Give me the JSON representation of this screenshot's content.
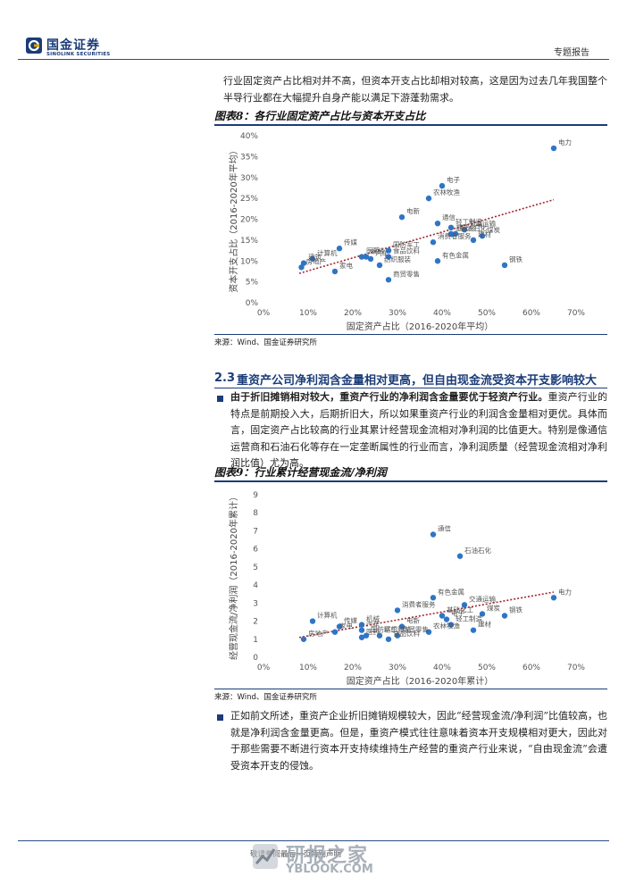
{
  "header": {
    "logo_cn": "国金证券",
    "logo_en": "SINOLINK SECURITIES",
    "report_type": "专题报告"
  },
  "intro_paragraph": "行业固定资产占比相对并不高，但资本开支占比却相对较高，这是因为过去几年我国整个半导行业都在大幅提升自身产能以满足下游蓬勃需求。",
  "figure8": {
    "title": "图表8：各行业固定资产占比与资本开支占比",
    "source": "来源：Wind、国金证券研究所"
  },
  "section": {
    "number": "2.3",
    "title": "重资产公司净利润含金量相对更高，但自由现金流受资本开支影响较大"
  },
  "bullet1": {
    "bold": "由于折旧摊销相对较大，重资产行业的净利润含金量要优于轻资产行业。",
    "body": "重资产行业的特点是前期投入大，后期折旧大，所以如果重资产行业的利润含金量相对更优。具体而言，固定资产占比较高的行业其累计经营现金流相对净利润的比值更大。特别是像通信运营商和石油石化等存在一定垄断属性的行业而言，净利润质量（经营现金流相对净利润比值）尤为高。"
  },
  "figure9": {
    "title": "图表9：行业累计经营现金流/净利润",
    "source": "来源：Wind、国金证券研究所"
  },
  "bullet2": {
    "body": "正如前文所述，重资产企业折旧摊销规模较大，因此“经营现金流/净利润”比值较高，也就是净利润含金量更高。但是，重资产模式往往意味着资本开支规模相对更大，因此对于那些需要不断进行资本开支持续维持生产经营的重资产行业来说，“自由现金流”会遭受资本开支的侵蚀。"
  },
  "footer": {
    "text": "敬请参阅最后一页特别声明",
    "watermark": "研报之家",
    "watermark_url": "YBLOOK.COM"
  },
  "chart_data": [
    {
      "type": "scatter",
      "xlabel": "固定资产占比（2016-2020年平均）",
      "ylabel": "资本开支占比（2016-2020年平均）",
      "xlim": [
        0,
        0.7
      ],
      "ylim": [
        0,
        0.4
      ],
      "x_ticks": [
        "0%",
        "10%",
        "20%",
        "30%",
        "40%",
        "50%",
        "60%",
        "70%"
      ],
      "y_ticks": [
        "0%",
        "5%",
        "10%",
        "15%",
        "20%",
        "25%",
        "30%",
        "35%",
        "40%"
      ],
      "trendline": true,
      "color": "#2e75c6",
      "trend_color": "#a0262b",
      "points": [
        {
          "label": "电力",
          "x": 0.65,
          "y": 0.37
        },
        {
          "label": "电子",
          "x": 0.4,
          "y": 0.28
        },
        {
          "label": "农林牧渔",
          "x": 0.37,
          "y": 0.25
        },
        {
          "label": "电新",
          "x": 0.31,
          "y": 0.205
        },
        {
          "label": "通信",
          "x": 0.39,
          "y": 0.19
        },
        {
          "label": "轻工制造",
          "x": 0.42,
          "y": 0.18
        },
        {
          "label": "交通运输",
          "x": 0.45,
          "y": 0.175
        },
        {
          "label": "基础化工",
          "x": 0.42,
          "y": 0.165
        },
        {
          "label": "石油石化",
          "x": 0.43,
          "y": 0.165
        },
        {
          "label": "煤炭",
          "x": 0.49,
          "y": 0.16
        },
        {
          "label": "建材",
          "x": 0.47,
          "y": 0.15
        },
        {
          "label": "消费者服务",
          "x": 0.38,
          "y": 0.145
        },
        {
          "label": "有色金属",
          "x": 0.39,
          "y": 0.1
        },
        {
          "label": "钢铁",
          "x": 0.54,
          "y": 0.09
        },
        {
          "label": "传媒",
          "x": 0.17,
          "y": 0.13
        },
        {
          "label": "医药",
          "x": 0.22,
          "y": 0.11
        },
        {
          "label": "国防军工",
          "x": 0.28,
          "y": 0.125
        },
        {
          "label": "机械",
          "x": 0.23,
          "y": 0.11
        },
        {
          "label": "食品饮料",
          "x": 0.28,
          "y": 0.11
        },
        {
          "label": "汽车",
          "x": 0.24,
          "y": 0.105
        },
        {
          "label": "纺织服装",
          "x": 0.26,
          "y": 0.09
        },
        {
          "label": "计算机",
          "x": 0.11,
          "y": 0.105
        },
        {
          "label": "建筑",
          "x": 0.09,
          "y": 0.095
        },
        {
          "label": "房地产",
          "x": 0.085,
          "y": 0.085
        },
        {
          "label": "家电",
          "x": 0.16,
          "y": 0.075
        },
        {
          "label": "商贸零售",
          "x": 0.28,
          "y": 0.055
        }
      ]
    },
    {
      "type": "scatter",
      "xlabel": "固定资产占比（2016-2020年累计）",
      "ylabel": "经营现金流/净利润（2016-2020年累计）",
      "xlim": [
        0,
        0.7
      ],
      "ylim": [
        0,
        9
      ],
      "x_ticks": [
        "0%",
        "10%",
        "20%",
        "30%",
        "40%",
        "50%",
        "60%",
        "70%"
      ],
      "y_ticks": [
        "0",
        "1",
        "2",
        "3",
        "4",
        "5",
        "6",
        "7",
        "8",
        "9"
      ],
      "trendline": true,
      "color": "#2e75c6",
      "trend_color": "#a0262b",
      "points": [
        {
          "label": "通信",
          "x": 0.38,
          "y": 6.8
        },
        {
          "label": "石油石化",
          "x": 0.44,
          "y": 5.6
        },
        {
          "label": "电力",
          "x": 0.65,
          "y": 3.3
        },
        {
          "label": "有色金属",
          "x": 0.38,
          "y": 3.3
        },
        {
          "label": "交通运输",
          "x": 0.45,
          "y": 2.9
        },
        {
          "label": "煤炭",
          "x": 0.49,
          "y": 2.4
        },
        {
          "label": "钢铁",
          "x": 0.54,
          "y": 2.3
        },
        {
          "label": "基础化工",
          "x": 0.4,
          "y": 2.3
        },
        {
          "label": "电子",
          "x": 0.41,
          "y": 2.1
        },
        {
          "label": "轻工制造",
          "x": 0.42,
          "y": 1.8
        },
        {
          "label": "建材",
          "x": 0.47,
          "y": 1.5
        },
        {
          "label": "消费者服务",
          "x": 0.3,
          "y": 2.6
        },
        {
          "label": "电新",
          "x": 0.31,
          "y": 1.7
        },
        {
          "label": "农林牧渔",
          "x": 0.37,
          "y": 1.4
        },
        {
          "label": "商贸零售",
          "x": 0.3,
          "y": 1.2
        },
        {
          "label": "纺织服装",
          "x": 0.26,
          "y": 1.2
        },
        {
          "label": "食品饮料",
          "x": 0.28,
          "y": 1.0
        },
        {
          "label": "机械",
          "x": 0.22,
          "y": 1.8
        },
        {
          "label": "汽车",
          "x": 0.22,
          "y": 1.5
        },
        {
          "label": "传媒",
          "x": 0.17,
          "y": 1.7
        },
        {
          "label": "计算机",
          "x": 0.11,
          "y": 2.0
        },
        {
          "label": "家电",
          "x": 0.16,
          "y": 1.4
        },
        {
          "label": "医药",
          "x": 0.22,
          "y": 1.1
        },
        {
          "label": "国防军工",
          "x": 0.23,
          "y": 1.2
        },
        {
          "label": "房地产",
          "x": 0.09,
          "y": 1.0
        }
      ]
    }
  ]
}
